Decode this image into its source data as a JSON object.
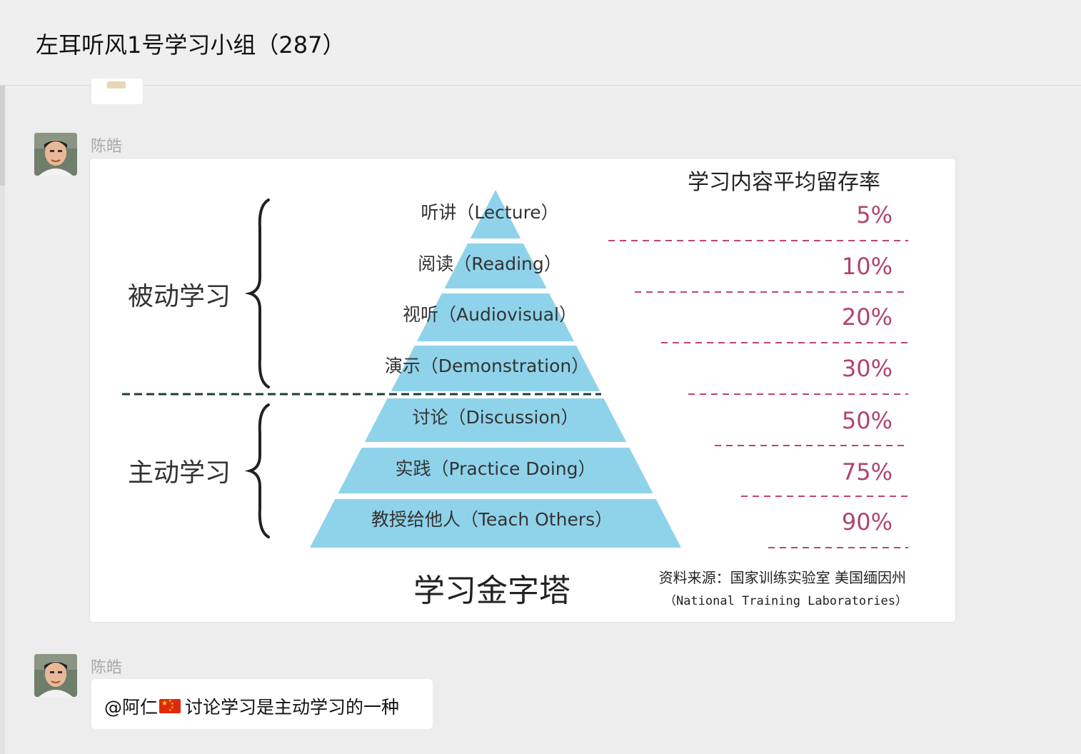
{
  "chat": {
    "title": "左耳听风1号学习小组（287）"
  },
  "messages": [
    {
      "sender": "陈皓",
      "type": "image"
    },
    {
      "sender": "陈皓",
      "type": "text",
      "mention": "@阿仁",
      "flag_icon": "cn-flag-icon",
      "text": "讨论学习是主动学习的一种"
    }
  ],
  "pyramid": {
    "header": "学习内容平均留存率",
    "levels": [
      {
        "label": "听讲（Lecture）",
        "rate": "5%"
      },
      {
        "label": "阅读（Reading）",
        "rate": "10%"
      },
      {
        "label": "视听（Audiovisual）",
        "rate": "20%"
      },
      {
        "label": "演示（Demonstration）",
        "rate": "30%"
      },
      {
        "label": "讨论（Discussion）",
        "rate": "50%"
      },
      {
        "label": "实践（Practice Doing）",
        "rate": "75%"
      },
      {
        "label": "教授给他人（Teach Others）",
        "rate": "90%"
      }
    ],
    "passive_label": "被动学习",
    "active_label": "主动学习",
    "bottom_title": "学习金字塔",
    "source_line1": "资料来源：国家训练实验室 美国缅因州",
    "source_line2": "（National Training Laboratories）",
    "colors": {
      "pyramid": "#8fd3ea",
      "rate": "#b0456c",
      "dash": "#c0446a"
    }
  }
}
